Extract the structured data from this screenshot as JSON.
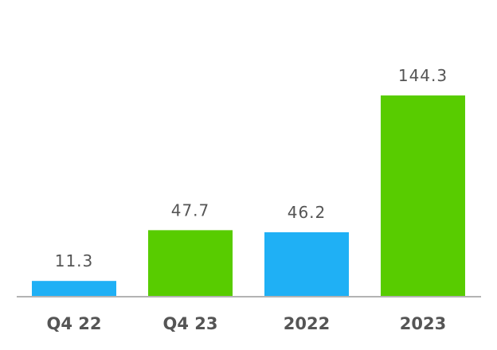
{
  "chart_data": {
    "type": "bar",
    "categories": [
      "Q4 22",
      "Q4 23",
      "2022",
      "2023"
    ],
    "values": [
      11.3,
      47.7,
      46.2,
      144.3
    ],
    "value_labels": [
      "11.3",
      "47.7",
      "46.2",
      "144.3"
    ],
    "bar_colors": [
      "#1fb0f5",
      "#58cc00",
      "#1fb0f5",
      "#58cc00"
    ],
    "axis_color": "#b3b3b3",
    "title": "",
    "xlabel": "",
    "ylabel": "",
    "ylim": [
      0,
      144.3
    ],
    "grid": false,
    "legend": "none"
  }
}
